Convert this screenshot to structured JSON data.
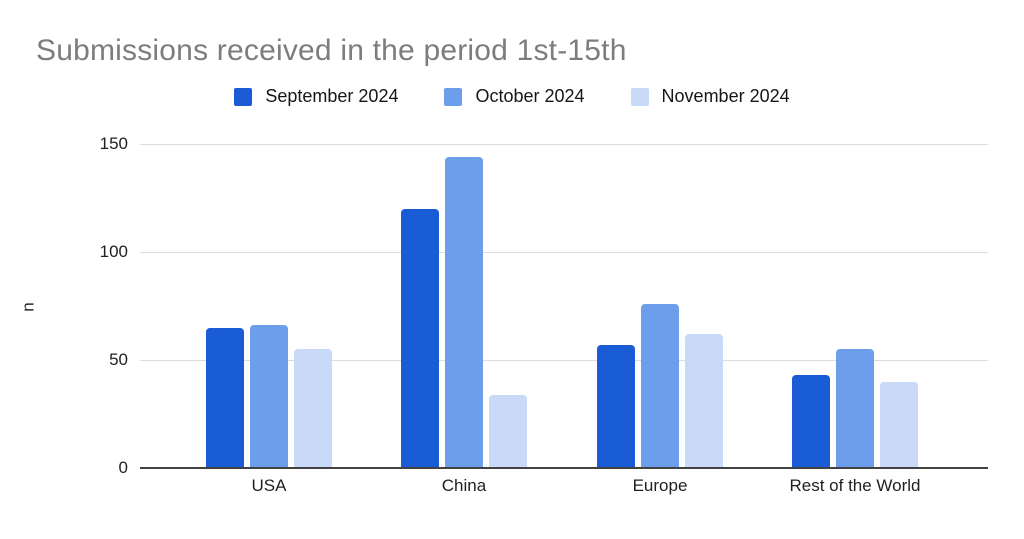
{
  "chart_data": {
    "type": "bar",
    "title": "Submissions received in the period 1st-15th",
    "xlabel": "",
    "ylabel": "n",
    "ylim": [
      0,
      150
    ],
    "yticks": [
      0,
      50,
      100,
      150
    ],
    "grid": true,
    "legend_position": "top",
    "categories": [
      "USA",
      "China",
      "Europe",
      "Rest of the World"
    ],
    "series": [
      {
        "name": "September 2024",
        "color": "#1a5cd6",
        "values": [
          65,
          120,
          57,
          43
        ]
      },
      {
        "name": "October 2024",
        "color": "#6d9eeb",
        "values": [
          66,
          144,
          76,
          55
        ]
      },
      {
        "name": "November 2024",
        "color": "#c9daf8",
        "values": [
          55,
          34,
          62,
          40
        ]
      }
    ]
  }
}
